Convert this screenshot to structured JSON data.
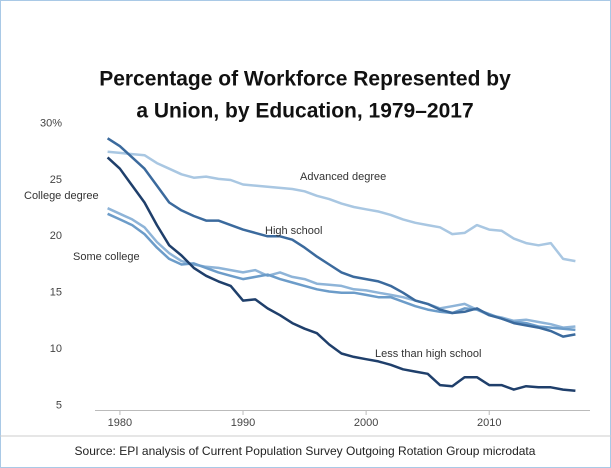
{
  "chart_data": {
    "type": "line",
    "title": [
      "Percentage of Workforce Represented by",
      "a Union, by Education, 1979–2017"
    ],
    "source": "Source: EPI analysis of Current Population Survey Outgoing Rotation Group microdata",
    "x": [
      1979,
      1980,
      1981,
      1982,
      1983,
      1984,
      1985,
      1986,
      1987,
      1988,
      1989,
      1990,
      1991,
      1992,
      1993,
      1994,
      1995,
      1996,
      1997,
      1998,
      1999,
      2000,
      2001,
      2002,
      2003,
      2004,
      2005,
      2006,
      2007,
      2008,
      2009,
      2010,
      2011,
      2012,
      2013,
      2014,
      2015,
      2016,
      2017
    ],
    "xlim": [
      1977,
      2019
    ],
    "xticks": [
      1980,
      1990,
      2000,
      2010
    ],
    "ylim": [
      4.5,
      30.5
    ],
    "yticks": [
      {
        "value": 30,
        "label": "30%"
      },
      25,
      20,
      15,
      10,
      5
    ],
    "grid": false,
    "series": [
      {
        "name": "Advanced degree",
        "color": "#a9c7e2",
        "values": [
          27.5,
          27.4,
          27.3,
          27.2,
          26.5,
          26,
          25.5,
          25.2,
          25.3,
          25.1,
          25,
          24.6,
          24.5,
          24.4,
          24.3,
          24.2,
          24,
          23.6,
          23.3,
          22.9,
          22.6,
          22.4,
          22.2,
          21.9,
          21.5,
          21.2,
          21,
          20.8,
          20.2,
          20.3,
          21,
          20.6,
          20.5,
          19.8,
          19.4,
          19.2,
          19.4,
          18,
          17.8
        ]
      },
      {
        "name": "College degree",
        "color": "#8eb4d8",
        "values": [
          22.5,
          22,
          21.5,
          20.8,
          19.5,
          18.5,
          17.8,
          17.5,
          17.3,
          17.2,
          17,
          16.8,
          17,
          16.5,
          16.8,
          16.4,
          16.2,
          15.8,
          15.7,
          15.6,
          15.3,
          15.2,
          15,
          14.8,
          14.6,
          14.3,
          14,
          13.6,
          13.8,
          14,
          13.5,
          13,
          12.8,
          12.5,
          12.6,
          12.4,
          12.2,
          11.9,
          12
        ]
      },
      {
        "name": "Some college",
        "color": "#6c9cc9",
        "values": [
          22,
          21.5,
          21,
          20.2,
          19,
          18,
          17.5,
          17.6,
          17.2,
          16.8,
          16.5,
          16.2,
          16.4,
          16.6,
          16.2,
          15.9,
          15.6,
          15.3,
          15.1,
          15,
          15,
          14.8,
          14.6,
          14.6,
          14.2,
          13.8,
          13.5,
          13.3,
          13.2,
          13.6,
          13.5,
          13.1,
          12.7,
          12.4,
          12.3,
          12,
          11.9,
          11.8,
          11.7
        ]
      },
      {
        "name": "High school",
        "color": "#3b6a9d",
        "values": [
          28.7,
          28,
          27,
          26,
          24.5,
          23,
          22.3,
          21.8,
          21.4,
          21.4,
          21,
          20.6,
          20.3,
          20,
          20,
          19.7,
          19,
          18.2,
          17.5,
          16.8,
          16.4,
          16.2,
          16,
          15.6,
          15,
          14.3,
          14,
          13.5,
          13.2,
          13.3,
          13.6,
          13,
          12.7,
          12.3,
          12.1,
          11.9,
          11.6,
          11.1,
          11.3
        ]
      },
      {
        "name": "Less than high school",
        "color": "#1f3f6b",
        "values": [
          27,
          26,
          24.5,
          23,
          21,
          19.2,
          18.3,
          17.2,
          16.5,
          16,
          15.6,
          14.3,
          14.4,
          13.6,
          13,
          12.3,
          11.8,
          11.4,
          10.4,
          9.6,
          9.3,
          9.1,
          8.9,
          8.6,
          8.2,
          8,
          7.8,
          6.8,
          6.7,
          7.5,
          7.5,
          6.8,
          6.8,
          6.4,
          6.7,
          6.6,
          6.6,
          6.4,
          6.3
        ]
      }
    ]
  }
}
